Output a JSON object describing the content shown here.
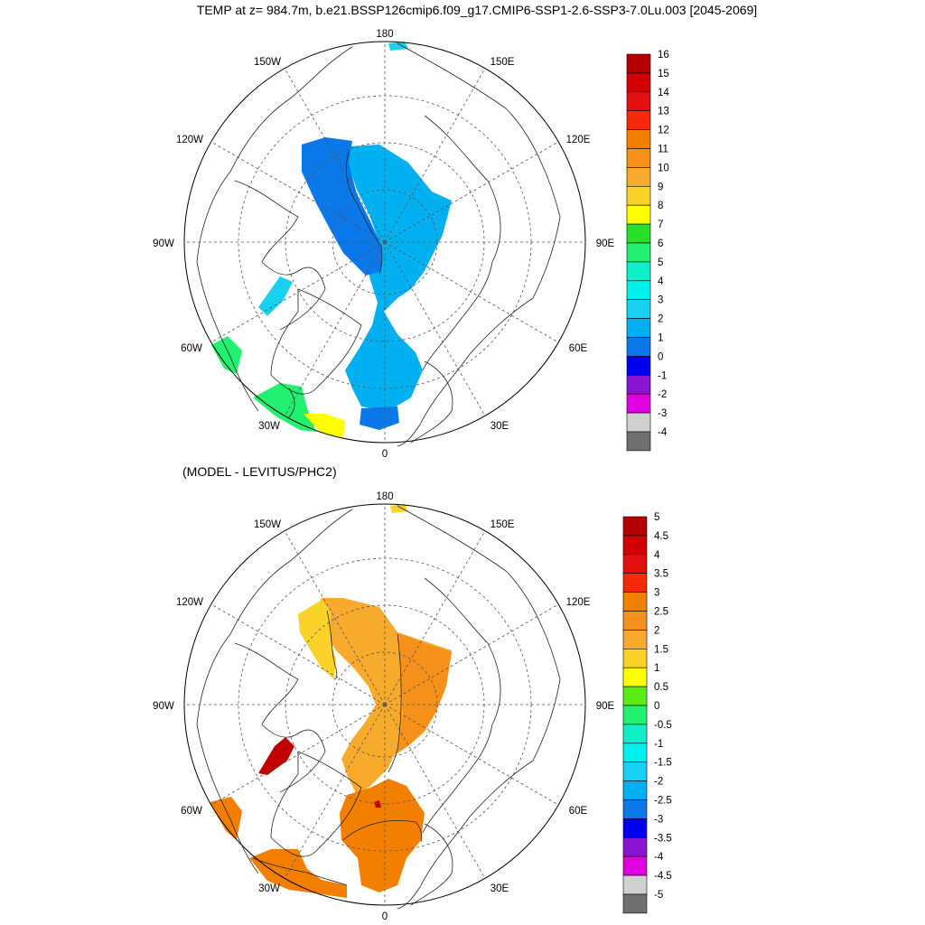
{
  "title": "TEMP at z= 984.7m, b.e21.BSSP126cmip6.f09_g17.CMIP6-SSP1-2.6-SSP3-7.0Lu.003 [2045-2069]",
  "subtitle": "(MODEL - LEVITUS/PHC2)",
  "panels": [
    {
      "id": "top",
      "lon_labels": [
        "180",
        "150E",
        "120E",
        "90E",
        "60E",
        "30E",
        "0",
        "30W",
        "60W",
        "90W",
        "120W",
        "150W"
      ],
      "colorbar": {
        "labels": [
          "16",
          "15",
          "14",
          "13",
          "12",
          "11",
          "10",
          "9",
          "8",
          "7",
          "6",
          "5",
          "4",
          "3",
          "2",
          "1",
          "0",
          "-1",
          "-2",
          "-3",
          "-4"
        ],
        "colors": [
          "#b40000",
          "#d20000",
          "#e41010",
          "#f52a0a",
          "#f27f00",
          "#f5901a",
          "#f8aa2c",
          "#fbd22a",
          "#ffff00",
          "#28e028",
          "#22f070",
          "#10f0c8",
          "#00f0f0",
          "#18d0f0",
          "#00b0f0",
          "#0a78e8",
          "#0000f0",
          "#8a14d2",
          "#e000e0",
          "#d0d0d0",
          "#707070"
        ]
      }
    },
    {
      "id": "bottom",
      "lon_labels": [
        "180",
        "150E",
        "120E",
        "90E",
        "60E",
        "30E",
        "0",
        "30W",
        "60W",
        "90W",
        "120W",
        "150W"
      ],
      "colorbar": {
        "labels": [
          "5",
          "4.5",
          "4",
          "3.5",
          "3",
          "2.5",
          "2",
          "1.5",
          "1",
          "0.5",
          "0",
          "-0.5",
          "-1",
          "-1.5",
          "-2",
          "-2.5",
          "-3",
          "-3.5",
          "-4",
          "-4.5",
          "-5"
        ],
        "colors": [
          "#b40000",
          "#d20000",
          "#e41010",
          "#f52a0a",
          "#f27f00",
          "#f5901a",
          "#f8aa2c",
          "#fbd22a",
          "#ffff00",
          "#5aec14",
          "#22f070",
          "#10f0c8",
          "#00f0f0",
          "#18d0f0",
          "#00b0f0",
          "#0a78e8",
          "#0000f0",
          "#8a14d2",
          "#e000e0",
          "#d0d0d0",
          "#707070"
        ]
      }
    }
  ]
}
